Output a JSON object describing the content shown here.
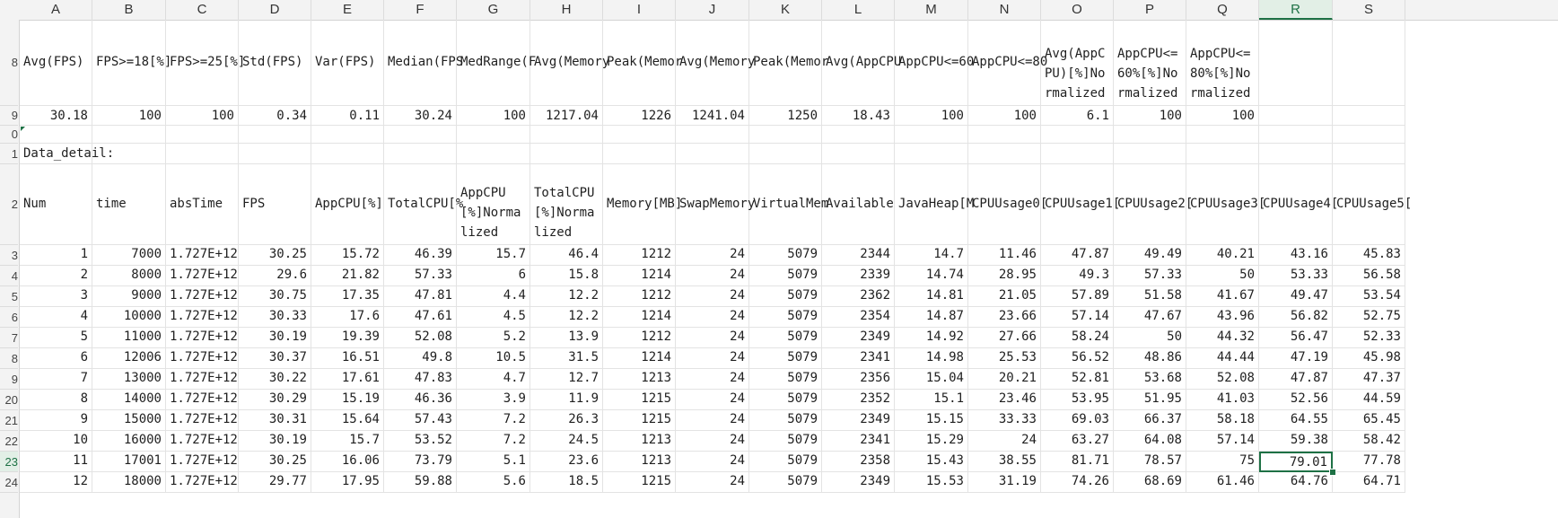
{
  "columns": [
    "A",
    "B",
    "C",
    "D",
    "E",
    "F",
    "G",
    "H",
    "I",
    "J",
    "K",
    "L",
    "M",
    "N",
    "O",
    "P",
    "Q",
    "R",
    "S"
  ],
  "active_column": "R",
  "active_row": "23",
  "row_numbers": [
    "8",
    "9",
    "0",
    "1",
    "2",
    "3",
    "4",
    "5",
    "6",
    "7",
    "8",
    "9",
    "20",
    "21",
    "22",
    "23",
    "24"
  ],
  "summary_headers": [
    "Avg(FPS)",
    "FPS>=18[%]",
    "FPS>=25[%]",
    "Std(FPS)",
    "Var(FPS)",
    "Median(FPS",
    "MedRange(F",
    "Avg(Memory",
    "Peak(Memor",
    "Avg(Memory",
    "Peak(Memor",
    "Avg(AppCPU",
    "AppCPU<=60",
    "AppCPU<=80",
    "Avg(AppCPU)[%]Normalized",
    "AppCPU<=60%[%]Normalized",
    "AppCPU<=80%[%]Normalized",
    "",
    ""
  ],
  "summary_values": [
    "30.18",
    "100",
    "100",
    "0.34",
    "0.11",
    "30.24",
    "100",
    "1217.04",
    "1226",
    "1241.04",
    "1250",
    "18.43",
    "100",
    "100",
    "6.1",
    "100",
    "100",
    "",
    ""
  ],
  "section_label": "Data_detail:",
  "detail_headers": [
    "Num",
    "time",
    "absTime",
    "FPS",
    "AppCPU[%]",
    "TotalCPU[%",
    "AppCPU[%]Normalized",
    "TotalCPU[%]Normalized",
    "Memory[MB]",
    "SwapMemory",
    "VirtualMem",
    "Available",
    "JavaHeap[M",
    "CPUUsage0[",
    "CPUUsage1[",
    "CPUUsage2[",
    "CPUUsage3[",
    "CPUUsage4[",
    "CPUUsage5["
  ],
  "detail_rows": [
    [
      "1",
      "7000",
      "1.727E+12",
      "30.25",
      "15.72",
      "46.39",
      "15.7",
      "46.4",
      "1212",
      "24",
      "5079",
      "2344",
      "14.7",
      "11.46",
      "47.87",
      "49.49",
      "40.21",
      "43.16",
      "45.83"
    ],
    [
      "2",
      "8000",
      "1.727E+12",
      "29.6",
      "21.82",
      "57.33",
      "6",
      "15.8",
      "1214",
      "24",
      "5079",
      "2339",
      "14.74",
      "28.95",
      "49.3",
      "57.33",
      "50",
      "53.33",
      "56.58"
    ],
    [
      "3",
      "9000",
      "1.727E+12",
      "30.75",
      "17.35",
      "47.81",
      "4.4",
      "12.2",
      "1212",
      "24",
      "5079",
      "2362",
      "14.81",
      "21.05",
      "57.89",
      "51.58",
      "41.67",
      "49.47",
      "53.54"
    ],
    [
      "4",
      "10000",
      "1.727E+12",
      "30.33",
      "17.6",
      "47.61",
      "4.5",
      "12.2",
      "1214",
      "24",
      "5079",
      "2354",
      "14.87",
      "23.66",
      "57.14",
      "47.67",
      "43.96",
      "56.82",
      "52.75"
    ],
    [
      "5",
      "11000",
      "1.727E+12",
      "30.19",
      "19.39",
      "52.08",
      "5.2",
      "13.9",
      "1212",
      "24",
      "5079",
      "2349",
      "14.92",
      "27.66",
      "58.24",
      "50",
      "44.32",
      "56.47",
      "52.33"
    ],
    [
      "6",
      "12006",
      "1.727E+12",
      "30.37",
      "16.51",
      "49.8",
      "10.5",
      "31.5",
      "1214",
      "24",
      "5079",
      "2341",
      "14.98",
      "25.53",
      "56.52",
      "48.86",
      "44.44",
      "47.19",
      "45.98"
    ],
    [
      "7",
      "13000",
      "1.727E+12",
      "30.22",
      "17.61",
      "47.83",
      "4.7",
      "12.7",
      "1213",
      "24",
      "5079",
      "2356",
      "15.04",
      "20.21",
      "52.81",
      "53.68",
      "52.08",
      "47.87",
      "47.37"
    ],
    [
      "8",
      "14000",
      "1.727E+12",
      "30.29",
      "15.19",
      "46.36",
      "3.9",
      "11.9",
      "1215",
      "24",
      "5079",
      "2352",
      "15.1",
      "23.46",
      "53.95",
      "51.95",
      "41.03",
      "52.56",
      "44.59"
    ],
    [
      "9",
      "15000",
      "1.727E+12",
      "30.31",
      "15.64",
      "57.43",
      "7.2",
      "26.3",
      "1215",
      "24",
      "5079",
      "2349",
      "15.15",
      "33.33",
      "69.03",
      "66.37",
      "58.18",
      "64.55",
      "65.45"
    ],
    [
      "10",
      "16000",
      "1.727E+12",
      "30.19",
      "15.7",
      "53.52",
      "7.2",
      "24.5",
      "1213",
      "24",
      "5079",
      "2341",
      "15.29",
      "24",
      "63.27",
      "64.08",
      "57.14",
      "59.38",
      "58.42"
    ],
    [
      "11",
      "17001",
      "1.727E+12",
      "30.25",
      "16.06",
      "73.79",
      "5.1",
      "23.6",
      "1213",
      "24",
      "5079",
      "2358",
      "15.43",
      "38.55",
      "81.71",
      "78.57",
      "75",
      "79.01",
      "77.78"
    ],
    [
      "12",
      "18000",
      "1.727E+12",
      "29.77",
      "17.95",
      "59.88",
      "5.6",
      "18.5",
      "1215",
      "24",
      "5079",
      "2349",
      "15.53",
      "31.19",
      "74.26",
      "68.69",
      "61.46",
      "64.76",
      "64.71"
    ]
  ]
}
